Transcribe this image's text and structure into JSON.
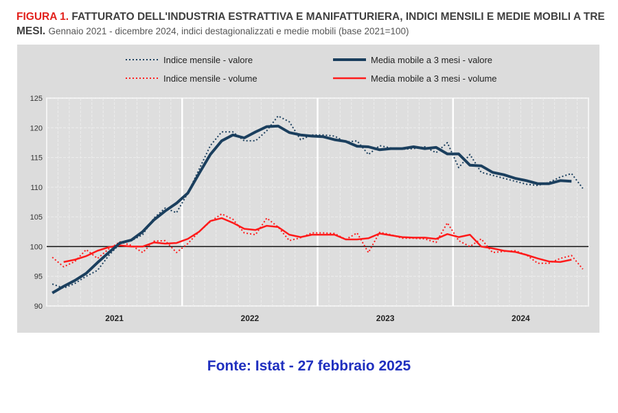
{
  "header": {
    "figure_label": "FIGURA 1.",
    "title": "FATTURATO DELL'INDUSTRIA ESTRATTIVA E MANIFATTURIERA, INDICI MENSILI E MEDIE MOBILI A TRE MESI.",
    "subtitle": "Gennaio 2021 - dicembre 2024, indici destagionalizzati e medie mobili (base 2021=100)"
  },
  "source": "Fonte: Istat - 27 febbraio 2025",
  "chart_data": {
    "type": "line",
    "x_start": "2021-01",
    "x_end": "2024-12",
    "frequency": "monthly",
    "x_tick_labels": [
      "2021",
      "2022",
      "2023",
      "2024"
    ],
    "ylim": [
      90,
      125
    ],
    "y_ticks": [
      90,
      95,
      100,
      105,
      110,
      115,
      120,
      125
    ],
    "reference_line": 100,
    "grid": true,
    "legend_placement": "top",
    "series": [
      {
        "name": "Indice mensile - valore",
        "color": "#1b3f5e",
        "style": "dotted",
        "values": [
          93.7,
          93.0,
          93.8,
          95.0,
          96.0,
          98.5,
          100.5,
          101.0,
          102.0,
          104.8,
          106.5,
          105.7,
          109.0,
          113.0,
          117.0,
          119.3,
          119.3,
          117.8,
          117.8,
          119.5,
          122.0,
          121.0,
          118.0,
          118.8,
          118.8,
          118.6,
          117.6,
          117.8,
          115.5,
          117.0,
          116.6,
          116.4,
          116.5,
          116.8,
          115.8,
          117.5,
          113.3,
          115.5,
          112.5,
          112.0,
          111.5,
          111.0,
          110.5,
          110.3,
          110.8,
          111.7,
          112.3,
          109.8
        ]
      },
      {
        "name": "Media mobile a 3 mesi - valore",
        "color": "#1b3f5e",
        "style": "solid",
        "values": [
          92.2,
          93.3,
          94.3,
          95.5,
          97.3,
          99.0,
          100.6,
          101.1,
          102.5,
          104.5,
          106.0,
          107.3,
          109.0,
          112.3,
          115.5,
          117.8,
          118.8,
          118.3,
          119.3,
          120.2,
          120.3,
          119.2,
          118.8,
          118.6,
          118.5,
          118.0,
          117.7,
          116.9,
          116.8,
          116.3,
          116.5,
          116.5,
          116.8,
          116.5,
          116.7,
          115.6,
          115.6,
          113.7,
          113.6,
          112.5,
          112.1,
          111.5,
          111.1,
          110.6,
          110.6,
          111.1,
          111.0,
          null
        ]
      },
      {
        "name": "Indice mensile - volume",
        "color": "#ff1a1a",
        "style": "dotted",
        "values": [
          98.2,
          96.6,
          97.5,
          99.5,
          98.0,
          99.6,
          100.8,
          100.2,
          99.0,
          100.9,
          101.0,
          99.0,
          100.5,
          102.5,
          104.2,
          105.5,
          104.6,
          102.3,
          102.0,
          104.8,
          103.3,
          101.0,
          101.5,
          102.3,
          102.3,
          102.2,
          101.2,
          102.3,
          99.0,
          102.4,
          102.0,
          101.4,
          101.4,
          101.3,
          100.7,
          104.0,
          101.0,
          100.0,
          101.3,
          99.0,
          99.2,
          99.3,
          98.6,
          97.2,
          97.2,
          98.0,
          98.5,
          96.2
        ]
      },
      {
        "name": "Media mobile a 3 mesi - volume",
        "color": "#ff1a1a",
        "style": "solid",
        "values": [
          null,
          97.4,
          97.8,
          98.4,
          99.3,
          99.9,
          100.2,
          100.0,
          100.0,
          100.7,
          100.5,
          100.6,
          101.3,
          102.5,
          104.3,
          104.8,
          104.0,
          103.0,
          102.8,
          103.5,
          103.3,
          102.0,
          101.6,
          102.0,
          102.0,
          102.0,
          101.2,
          101.2,
          101.4,
          102.2,
          101.9,
          101.6,
          101.5,
          101.5,
          101.3,
          102.1,
          101.6,
          102.0,
          100.0,
          99.7,
          99.3,
          99.1,
          98.6,
          98.0,
          97.5,
          97.4,
          97.8,
          null
        ]
      }
    ]
  }
}
